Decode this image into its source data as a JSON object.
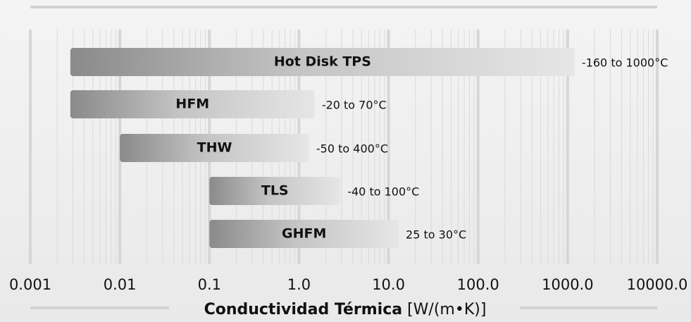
{
  "chart_data": {
    "type": "range-bar",
    "categories": [
      "Hot Disk TPS",
      "HFM",
      "THW",
      "TLS",
      "GHFM"
    ],
    "low": [
      0.0028,
      0.0028,
      0.01,
      0.1,
      0.1
    ],
    "high": [
      1200,
      1.5,
      1.3,
      2.9,
      13
    ],
    "annotations": [
      "-160 to 1000°C",
      "-20 to 70°C",
      "-50 to 400°C",
      "-40 to 100°C",
      "25 to 30°C"
    ],
    "xlim": [
      0.001,
      10000
    ],
    "xticks": [
      0.001,
      0.01,
      0.1,
      {
        "value": 1,
        "label": "1.0"
      },
      {
        "value": 10,
        "label": "10.0"
      },
      {
        "value": 100,
        "label": "100.0"
      },
      {
        "value": 1000,
        "label": "1000.0"
      },
      {
        "value": 10000,
        "label": "10000.0"
      }
    ],
    "xscale": "log",
    "grid": true,
    "xlabel": "Conductividad Térmica",
    "xlabel_unit": "[W/(m•K)]"
  }
}
